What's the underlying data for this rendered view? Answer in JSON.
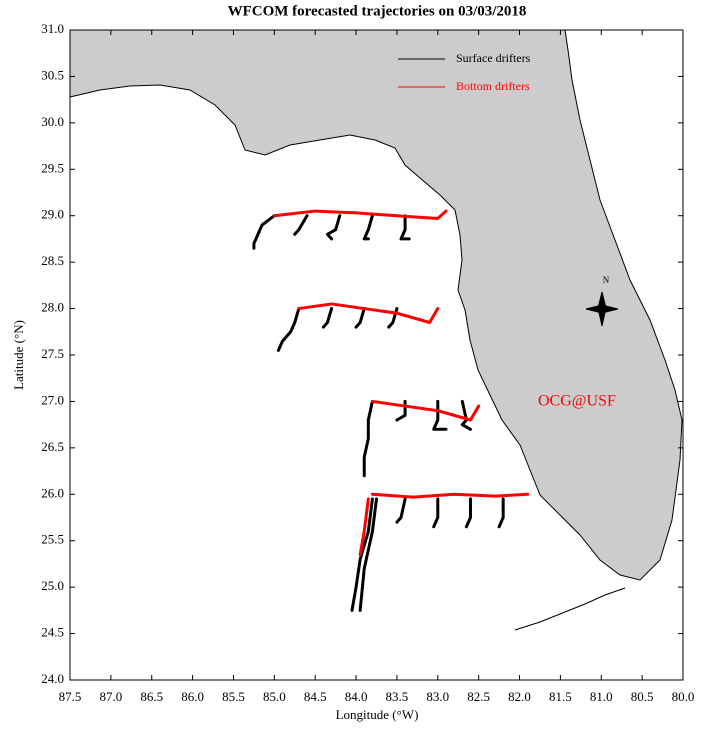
{
  "chart_data": {
    "type": "trajectory",
    "title": "WFCOM forecasted trajectories on 03/03/2018",
    "x_label": "Longitude (°W)",
    "y_label": "Latitude (°N)",
    "annotation": "OCG@USF",
    "xlim": [
      87.5,
      80.0
    ],
    "ylim": [
      24.0,
      31.0
    ],
    "xticks": [
      87.5,
      {
        "value": 87,
        "label": "87.0"
      },
      86.5,
      {
        "value": 86,
        "label": "86.0"
      },
      85.5,
      {
        "value": 85,
        "label": "85.0"
      },
      84.5,
      {
        "value": 84,
        "label": "84.0"
      },
      83.5,
      {
        "value": 83,
        "label": "83.0"
      },
      82.5,
      {
        "value": 82,
        "label": "82.0"
      },
      81.5,
      {
        "value": 81,
        "label": "81.0"
      },
      80.5,
      {
        "value": 80,
        "label": "80.0"
      }
    ],
    "yticks": [
      {
        "value": 24,
        "label": "24.0"
      },
      24.5,
      {
        "value": 25,
        "label": "25.0"
      },
      25.5,
      {
        "value": 26,
        "label": "26.0"
      },
      26.5,
      {
        "value": 27,
        "label": "27.0"
      },
      27.5,
      {
        "value": 28,
        "label": "28.0"
      },
      28.5,
      {
        "value": 29,
        "label": "29.0"
      },
      29.5,
      {
        "value": 30,
        "label": "30.0"
      },
      30.5,
      {
        "value": 31,
        "label": "31.0"
      }
    ],
    "series": [
      {
        "name": "Surface drifters",
        "color": "#000000",
        "tracks": [
          {
            "x": [
              85.0,
              85.15,
              85.2,
              85.25,
              85.25
            ],
            "y": [
              29.0,
              28.9,
              28.8,
              28.7,
              28.65
            ]
          },
          {
            "x": [
              84.6,
              84.7,
              84.75
            ],
            "y": [
              29.0,
              28.85,
              28.8
            ]
          },
          {
            "x": [
              84.2,
              84.25,
              84.35,
              84.3
            ],
            "y": [
              29.0,
              28.85,
              28.8,
              28.75
            ]
          },
          {
            "x": [
              83.8,
              83.85,
              83.9,
              83.85
            ],
            "y": [
              29.0,
              28.85,
              28.75,
              28.75
            ]
          },
          {
            "x": [
              83.4,
              83.4,
              83.45,
              83.35
            ],
            "y": [
              29.0,
              28.85,
              28.75,
              28.75
            ]
          },
          {
            "x": [
              84.7,
              84.75,
              84.8,
              84.9,
              84.95
            ],
            "y": [
              28.0,
              27.85,
              27.75,
              27.65,
              27.55
            ]
          },
          {
            "x": [
              84.3,
              84.35,
              84.4
            ],
            "y": [
              28.0,
              27.85,
              27.8
            ]
          },
          {
            "x": [
              83.9,
              83.95,
              84.0
            ],
            "y": [
              28.0,
              27.85,
              27.8
            ]
          },
          {
            "x": [
              83.5,
              83.55,
              83.6
            ],
            "y": [
              28.0,
              27.85,
              27.8
            ]
          },
          {
            "x": [
              83.8,
              83.85,
              83.85,
              83.9,
              83.9
            ],
            "y": [
              27.0,
              26.8,
              26.6,
              26.4,
              26.2
            ]
          },
          {
            "x": [
              83.4,
              83.4,
              83.5
            ],
            "y": [
              27.0,
              26.85,
              26.8
            ]
          },
          {
            "x": [
              83.0,
              83.0,
              83.05,
              82.9
            ],
            "y": [
              27.0,
              26.8,
              26.7,
              26.7
            ]
          },
          {
            "x": [
              82.7,
              82.65,
              82.7,
              82.6
            ],
            "y": [
              27.0,
              26.8,
              26.75,
              26.7
            ]
          },
          {
            "x": [
              83.8,
              83.85,
              83.95,
              84.0,
              84.05
            ],
            "y": [
              25.95,
              25.6,
              25.3,
              25.0,
              24.75
            ]
          },
          {
            "x": [
              83.75,
              83.8,
              83.9,
              83.95
            ],
            "y": [
              25.95,
              25.6,
              25.2,
              24.75
            ]
          },
          {
            "x": [
              83.4,
              83.45,
              83.5
            ],
            "y": [
              25.95,
              25.75,
              25.7
            ]
          },
          {
            "x": [
              83.0,
              83.0,
              83.05
            ],
            "y": [
              25.95,
              25.75,
              25.65
            ]
          },
          {
            "x": [
              82.6,
              82.6,
              82.65
            ],
            "y": [
              25.95,
              25.75,
              25.65
            ]
          },
          {
            "x": [
              82.2,
              82.2,
              82.25
            ],
            "y": [
              25.95,
              25.75,
              25.65
            ]
          }
        ]
      },
      {
        "name": "Bottom drifters",
        "color": "#ff0000",
        "tracks": [
          {
            "x": [
              85.0,
              84.5,
              84.0,
              83.5,
              83.0,
              82.9
            ],
            "y": [
              29.0,
              29.05,
              29.03,
              29.0,
              28.97,
              29.05
            ]
          },
          {
            "x": [
              84.7,
              84.3,
              83.9,
              83.5,
              83.1,
              83.0
            ],
            "y": [
              28.0,
              28.05,
              28.0,
              27.95,
              27.85,
              28.0
            ]
          },
          {
            "x": [
              83.8,
              83.4,
              83.0,
              82.6,
              82.5
            ],
            "y": [
              27.0,
              26.95,
              26.9,
              26.8,
              26.95
            ]
          },
          {
            "x": [
              83.8,
              83.3,
              82.8,
              82.3,
              81.9
            ],
            "y": [
              26.0,
              25.97,
              26.0,
              25.98,
              26.0
            ]
          },
          {
            "x": [
              83.85,
              83.9,
              83.95
            ],
            "y": [
              25.95,
              25.6,
              25.35
            ]
          }
        ]
      }
    ]
  }
}
